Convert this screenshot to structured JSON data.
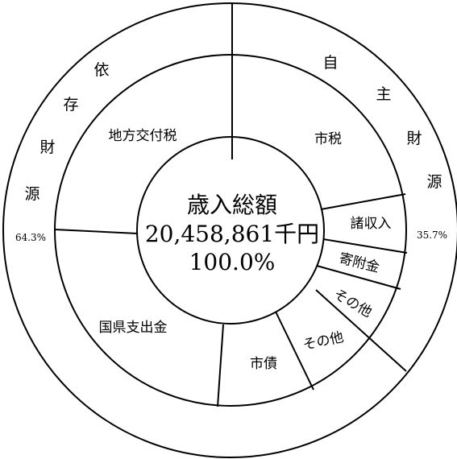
{
  "chart_data": {
    "type": "pie",
    "center": {
      "title": "歳入総額",
      "total": "20,458,861千円",
      "percent": "100.0%"
    },
    "outer_ring": [
      {
        "label": "自主財源",
        "percent_label": "35.7%",
        "value": 35.7
      },
      {
        "label": "依存財源",
        "percent_label": "64.3%",
        "value": 64.3
      }
    ],
    "inner_ring": [
      {
        "label": "市税"
      },
      {
        "label": "諸収入"
      },
      {
        "label": "寄附金"
      },
      {
        "label": "その他"
      },
      {
        "label": "その他"
      },
      {
        "label": "市債"
      },
      {
        "label": "国県支出金"
      },
      {
        "label": "地方交付税"
      }
    ]
  }
}
